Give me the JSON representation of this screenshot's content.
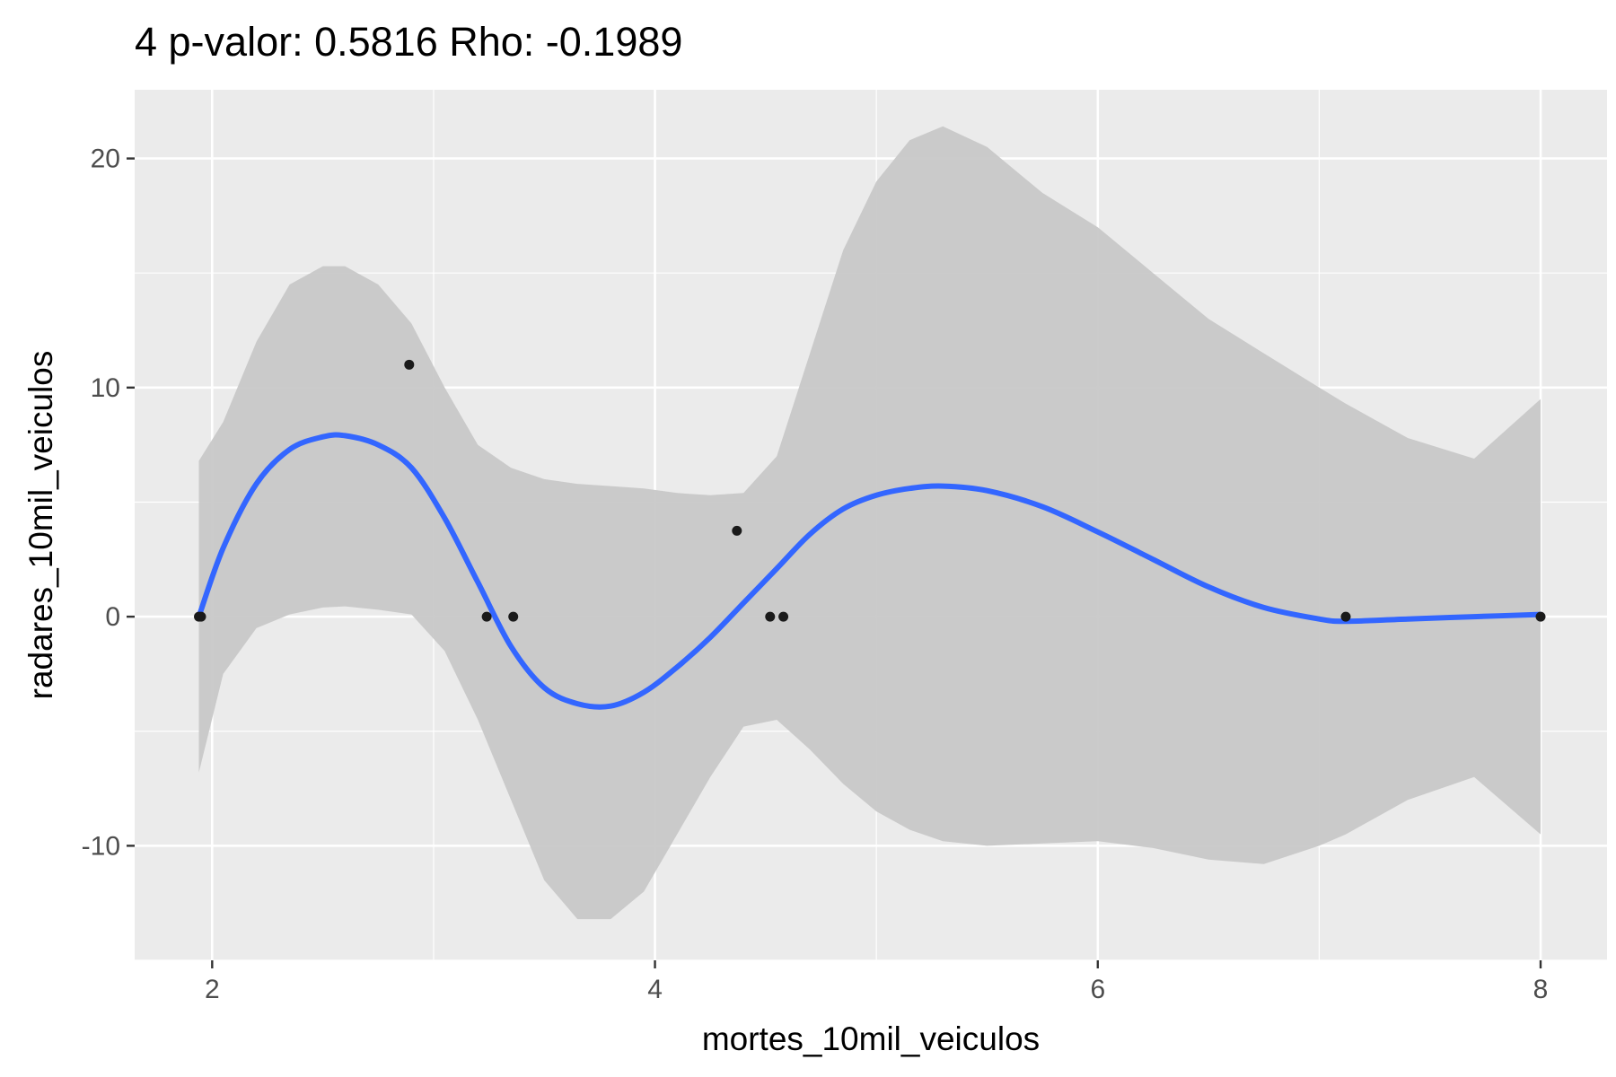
{
  "chart_data": {
    "type": "scatter",
    "title": "4 p-valor: 0.5816 Rho: -0.1989",
    "xlabel": "mortes_10mil_veiculos",
    "ylabel": "radares_10mil_veiculos",
    "xlim": [
      1.65,
      8.3
    ],
    "ylim": [
      -15,
      23
    ],
    "x_ticks": [
      2,
      4,
      6,
      8
    ],
    "y_ticks": [
      -10,
      0,
      10,
      20
    ],
    "grid": true,
    "legend": "none",
    "colors": {
      "panel": "#ebebeb",
      "grid": "#ffffff",
      "points": "#1a1a1a",
      "smooth": "#3366ff",
      "ribbon": "#c8c8c8"
    },
    "points": [
      {
        "x": 1.94,
        "y": 0
      },
      {
        "x": 1.95,
        "y": 0
      },
      {
        "x": 2.89,
        "y": 11
      },
      {
        "x": 3.24,
        "y": 0
      },
      {
        "x": 3.36,
        "y": 0
      },
      {
        "x": 4.37,
        "y": 3.75
      },
      {
        "x": 4.52,
        "y": 0
      },
      {
        "x": 4.58,
        "y": 0
      },
      {
        "x": 7.12,
        "y": 0
      },
      {
        "x": 8.0,
        "y": 0
      }
    ],
    "smooth": {
      "method": "loess",
      "x": [
        1.94,
        2.05,
        2.2,
        2.35,
        2.5,
        2.6,
        2.75,
        2.9,
        3.05,
        3.2,
        3.35,
        3.5,
        3.65,
        3.8,
        3.95,
        4.1,
        4.25,
        4.4,
        4.55,
        4.7,
        4.85,
        5.0,
        5.15,
        5.3,
        5.5,
        5.75,
        6.0,
        6.25,
        6.5,
        6.75,
        7.0,
        7.12,
        7.4,
        7.7,
        8.0
      ],
      "fit": [
        0,
        3.0,
        5.8,
        7.3,
        7.85,
        7.9,
        7.5,
        6.5,
        4.3,
        1.5,
        -1.3,
        -3.1,
        -3.8,
        -3.9,
        -3.3,
        -2.2,
        -0.9,
        0.6,
        2.1,
        3.6,
        4.7,
        5.3,
        5.6,
        5.7,
        5.5,
        4.8,
        3.7,
        2.5,
        1.3,
        0.4,
        -0.1,
        -0.2,
        -0.1,
        0,
        0.1
      ],
      "lower": [
        -6.8,
        -2.5,
        -0.5,
        0.1,
        0.4,
        0.45,
        0.3,
        0.1,
        -1.5,
        -4.5,
        -8.0,
        -11.5,
        -13.2,
        -13.2,
        -12.0,
        -9.5,
        -7.0,
        -4.8,
        -4.5,
        -5.8,
        -7.3,
        -8.5,
        -9.3,
        -9.8,
        -10.0,
        -9.9,
        -9.8,
        -10.1,
        -10.6,
        -10.8,
        -10.0,
        -9.5,
        -8.0,
        -7.0,
        -9.5
      ],
      "upper": [
        6.8,
        8.5,
        12.0,
        14.5,
        15.3,
        15.3,
        14.5,
        12.8,
        10.0,
        7.5,
        6.5,
        6.0,
        5.8,
        5.7,
        5.6,
        5.4,
        5.3,
        5.4,
        7.0,
        11.5,
        16.0,
        19.0,
        20.8,
        21.4,
        20.5,
        18.5,
        17.0,
        15.0,
        13.0,
        11.5,
        10.0,
        9.3,
        7.8,
        6.9,
        9.5
      ]
    }
  }
}
